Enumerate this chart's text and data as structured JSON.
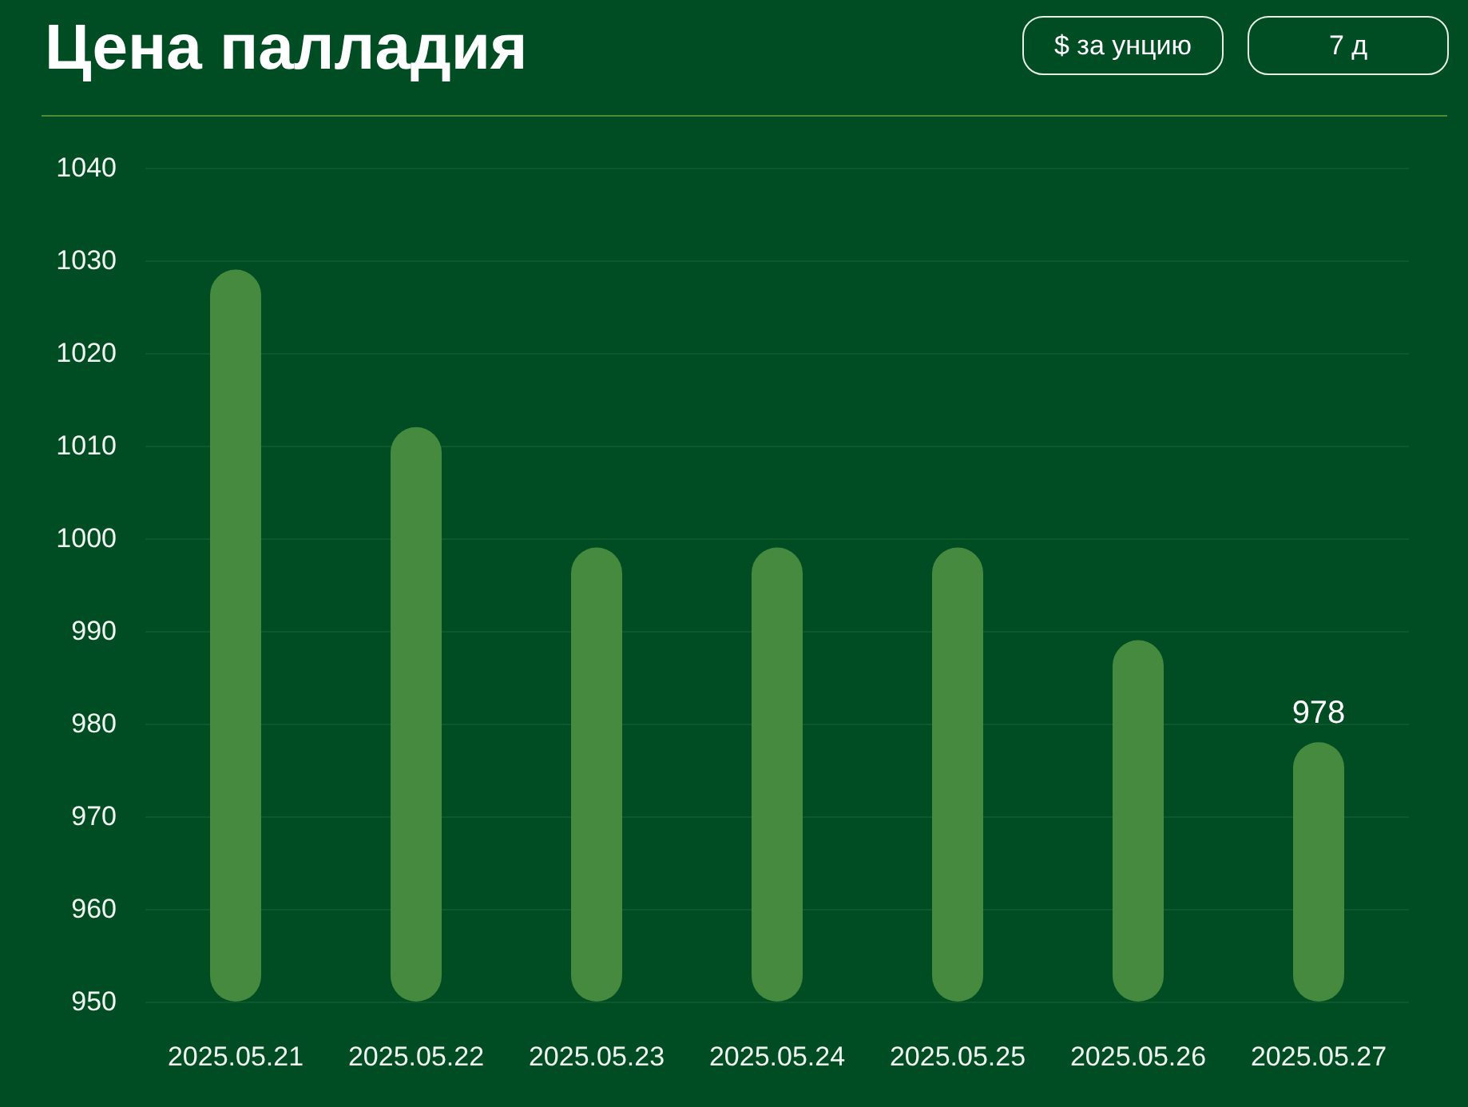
{
  "chart_data": {
    "type": "bar",
    "title": "Цена палладия",
    "annotations": [
      "$ за унцию",
      "7 д"
    ],
    "categories": [
      "2025.05.21",
      "2025.05.22",
      "2025.05.23",
      "2025.05.24",
      "2025.05.25",
      "2025.05.26",
      "2025.05.27"
    ],
    "values": [
      1029,
      1012,
      999,
      999,
      999,
      989,
      978
    ],
    "color": "#458a3f",
    "value_labels": [
      null,
      null,
      null,
      null,
      null,
      null,
      "978"
    ],
    "ylim": [
      950,
      1040
    ],
    "yticks": [
      950,
      960,
      970,
      980,
      990,
      1000,
      1010,
      1020,
      1030,
      1040
    ],
    "grid": "y"
  }
}
